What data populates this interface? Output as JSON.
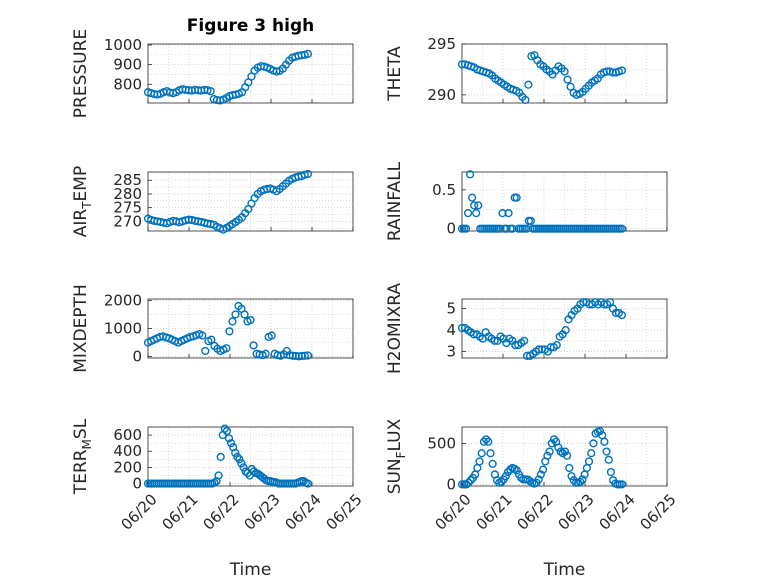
{
  "chart_data": [
    {
      "type": "scatter",
      "title": "Figure 3 high",
      "ylabel": "PRESSURE",
      "ylabel_sub": "",
      "xlabel": "",
      "yticks": [
        800,
        900,
        1000
      ],
      "ylim": [
        705,
        1005
      ],
      "xticks": [],
      "xlim": [
        "06/20",
        "06/25"
      ],
      "x_days_start": 0.0,
      "x_days_end": 3.9,
      "points": [
        760,
        755,
        750,
        748,
        752,
        760,
        765,
        758,
        755,
        760,
        770,
        775,
        772,
        770,
        768,
        772,
        770,
        768,
        772,
        770,
        765,
        725,
        720,
        718,
        722,
        730,
        740,
        745,
        748,
        752,
        760,
        785,
        810,
        840,
        870,
        885,
        892,
        890,
        885,
        878,
        870,
        865,
        868,
        880,
        900,
        920,
        935,
        940,
        945,
        948,
        950,
        955
      ]
    },
    {
      "type": "scatter",
      "title": "",
      "ylabel": "THETA",
      "ylabel_sub": "",
      "xlabel": "",
      "yticks": [
        290,
        295
      ],
      "ylim": [
        289.2,
        295.0
      ],
      "xticks": [],
      "xlim": [
        "06/20",
        "06/25"
      ],
      "x_days_start": 0.0,
      "x_days_end": 3.9,
      "points": [
        293.0,
        293.0,
        292.9,
        292.8,
        292.7,
        292.5,
        292.4,
        292.3,
        292.2,
        292.1,
        291.9,
        291.6,
        291.4,
        291.2,
        291.0,
        290.8,
        290.6,
        290.5,
        290.4,
        290.2,
        289.8,
        289.5,
        291.0,
        293.8,
        293.9,
        293.4,
        293.0,
        292.8,
        292.5,
        292.3,
        292.0,
        292.4,
        292.8,
        292.6,
        292.3,
        291.5,
        290.8,
        290.2,
        290.0,
        290.1,
        290.3,
        290.6,
        290.9,
        291.2,
        291.4,
        291.6,
        292.0,
        292.2,
        292.3,
        292.3,
        292.2,
        292.2,
        292.3,
        292.4
      ]
    },
    {
      "type": "scatter",
      "title": "",
      "ylabel": "AIR",
      "ylabel_sub": "T",
      "ylabel_post": "EMP",
      "xlabel": "",
      "yticks": [
        270,
        275,
        280,
        285
      ],
      "ylim": [
        266.5,
        288.0
      ],
      "xticks": [],
      "xlim": [
        "06/20",
        "06/25"
      ],
      "x_days_start": 0.0,
      "x_days_end": 3.9,
      "points": [
        271.0,
        270.5,
        270.2,
        270.0,
        269.8,
        269.5,
        269.3,
        269.8,
        270.2,
        270.0,
        269.7,
        270.0,
        270.4,
        270.6,
        270.5,
        270.2,
        270.0,
        269.8,
        269.5,
        269.2,
        269.0,
        268.8,
        268.0,
        267.5,
        267.0,
        267.6,
        268.3,
        269.0,
        269.8,
        270.6,
        271.5,
        273.0,
        274.5,
        276.5,
        278.5,
        280.0,
        281.0,
        281.5,
        281.8,
        282.0,
        281.6,
        281.0,
        281.8,
        282.8,
        283.8,
        284.8,
        285.5,
        286.0,
        286.3,
        286.5,
        287.0,
        287.3
      ]
    },
    {
      "type": "scatter",
      "title": "",
      "ylabel": "RAINFALL",
      "ylabel_sub": "",
      "xlabel": "",
      "yticks": [
        0,
        0.5
      ],
      "ylim": [
        -0.03,
        0.73
      ],
      "xticks": [],
      "xlim": [
        "06/20",
        "06/25"
      ],
      "x_days_start": 0.0,
      "x_days_end": 3.9,
      "points": [
        0,
        0,
        0,
        0.2,
        0.7,
        0.4,
        0.3,
        0.2,
        0.3,
        0,
        0,
        0,
        0,
        0,
        0,
        0,
        0,
        0,
        0,
        0,
        0.2,
        0,
        0,
        0.2,
        0,
        0,
        0.4,
        0.4,
        0,
        0,
        0,
        0,
        0,
        0.1,
        0.1,
        0,
        0,
        0,
        0,
        0,
        0,
        0,
        0,
        0,
        0,
        0,
        0,
        0,
        0,
        0,
        0,
        0,
        0,
        0,
        0,
        0,
        0,
        0,
        0,
        0,
        0,
        0,
        0,
        0,
        0,
        0,
        0,
        0,
        0,
        0,
        0,
        0,
        0,
        0,
        0,
        0,
        0,
        0,
        0,
        0
      ]
    },
    {
      "type": "scatter",
      "title": "",
      "ylabel": "MIXDEPTH",
      "ylabel_sub": "",
      "xlabel": "",
      "yticks": [
        0,
        1000,
        2000
      ],
      "ylim": [
        -50,
        2050
      ],
      "xticks": [],
      "xlim": [
        "06/20",
        "06/25"
      ],
      "x_days_start": 0.0,
      "x_days_end": 3.9,
      "points": [
        500,
        550,
        600,
        650,
        700,
        720,
        680,
        650,
        600,
        550,
        500,
        550,
        600,
        650,
        700,
        720,
        760,
        800,
        750,
        200,
        550,
        600,
        380,
        280,
        200,
        250,
        300,
        900,
        1250,
        1500,
        1800,
        1700,
        1500,
        1250,
        1300,
        400,
        100,
        80,
        50,
        100,
        700,
        750,
        100,
        50,
        30,
        80,
        200,
        50,
        30,
        20,
        10,
        20,
        30,
        40
      ]
    },
    {
      "type": "scatter",
      "title": "",
      "ylabel": "H2OMIXRA",
      "ylabel_sub": "",
      "xlabel": "",
      "yticks": [
        3,
        4,
        5
      ],
      "ylim": [
        2.7,
        5.45
      ],
      "xticks": [],
      "xlim": [
        "06/20",
        "06/25"
      ],
      "x_days_start": 0.0,
      "x_days_end": 3.9,
      "points": [
        4.1,
        4.1,
        4.0,
        3.9,
        3.8,
        3.8,
        3.7,
        3.6,
        3.9,
        3.7,
        3.6,
        3.5,
        3.5,
        3.7,
        3.6,
        3.4,
        3.6,
        3.5,
        3.3,
        3.3,
        3.4,
        3.5,
        2.8,
        2.8,
        2.9,
        3.0,
        3.1,
        3.1,
        3.1,
        3.0,
        3.2,
        3.2,
        3.3,
        3.7,
        3.8,
        4.0,
        4.5,
        4.7,
        4.9,
        5.0,
        5.2,
        5.3,
        5.3,
        5.2,
        5.2,
        5.3,
        5.2,
        5.3,
        5.2,
        5.2,
        5.3,
        5.0,
        4.8,
        4.8,
        4.7
      ]
    },
    {
      "type": "scatter",
      "title": "",
      "ylabel": "TERR",
      "ylabel_sub": "M",
      "ylabel_post": "SL",
      "xlabel": "Time",
      "yticks": [
        0,
        200,
        400,
        600
      ],
      "ylim": [
        -30,
        700
      ],
      "xticks": [
        "06/20",
        "06/21",
        "06/22",
        "06/23",
        "06/24",
        "06/25"
      ],
      "xlim": [
        "06/20",
        "06/25"
      ],
      "x_days_start": 0.0,
      "x_days_end": 3.9,
      "points": [
        0,
        0,
        0,
        0,
        0,
        0,
        0,
        0,
        0,
        0,
        0,
        0,
        0,
        0,
        0,
        0,
        0,
        0,
        0,
        0,
        0,
        0,
        0,
        0,
        0,
        0,
        0,
        0,
        0,
        0,
        0,
        0,
        10,
        30,
        100,
        330,
        600,
        680,
        650,
        560,
        500,
        450,
        380,
        330,
        300,
        250,
        200,
        150,
        130,
        100,
        180,
        150,
        130,
        120,
        100,
        80,
        60,
        40,
        30,
        30,
        20,
        20,
        10,
        0,
        0,
        0,
        0,
        0,
        0,
        0,
        0,
        0,
        10,
        20,
        30,
        30,
        10,
        0
      ]
    },
    {
      "type": "scatter",
      "title": "",
      "ylabel": "SUN",
      "ylabel_sub": "F",
      "ylabel_post": "LUX",
      "xlabel": "Time",
      "yticks": [
        0,
        500
      ],
      "ylim": [
        -20,
        700
      ],
      "xticks": [
        "06/20",
        "06/21",
        "06/22",
        "06/23",
        "06/24",
        "06/25"
      ],
      "xlim": [
        "06/20",
        "06/25"
      ],
      "x_days_start": 0.0,
      "x_days_end": 3.9,
      "points": [
        0,
        0,
        0,
        20,
        50,
        80,
        120,
        200,
        280,
        380,
        520,
        550,
        520,
        380,
        250,
        120,
        50,
        20,
        30,
        60,
        100,
        150,
        180,
        200,
        190,
        170,
        120,
        80,
        60,
        60,
        60,
        40,
        20,
        10,
        20,
        60,
        120,
        180,
        280,
        350,
        400,
        500,
        550,
        520,
        450,
        400,
        380,
        400,
        350,
        200,
        100,
        50,
        20,
        20,
        30,
        60,
        120,
        200,
        280,
        380,
        500,
        620,
        640,
        650,
        600,
        520,
        400,
        300,
        150,
        50,
        10,
        0,
        0,
        0
      ]
    }
  ]
}
